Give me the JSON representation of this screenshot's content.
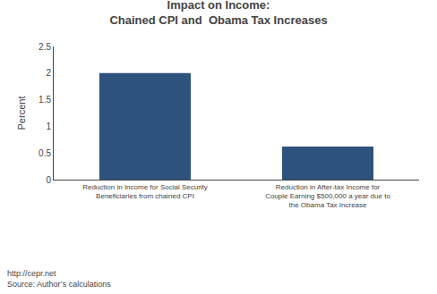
{
  "chart_data": {
    "type": "bar",
    "title": "Impact on Income:\nChained CPI and  Obama Tax Increases",
    "categories": [
      "Reduction in Income for Social Security\nBeneficiaries from chained CPI",
      "Reduction in After-tax Income for\nCouple Earning $500,000 a year due to\nthe Obama Tax Increase"
    ],
    "values": [
      2.0,
      0.62
    ],
    "color": "#2d527c",
    "ylabel": "Percent",
    "ylim": [
      0,
      2.5
    ],
    "yticks": [
      0,
      0.5,
      1.0,
      1.5,
      2.0,
      2.5
    ],
    "grid": false,
    "annotations": [
      "http://cepr.net",
      "Source: Author’s calculations"
    ]
  }
}
